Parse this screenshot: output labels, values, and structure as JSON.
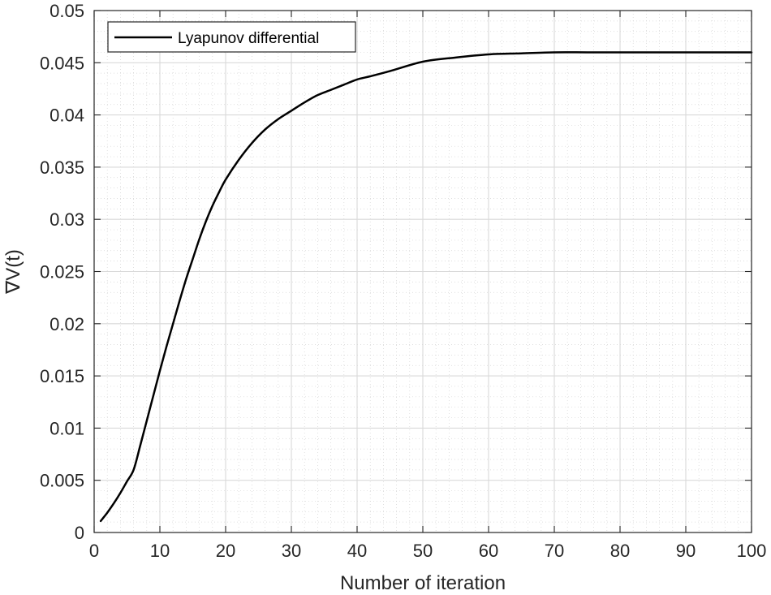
{
  "chart_data": {
    "type": "line",
    "title": "",
    "xlabel": "Number of iteration",
    "ylabel": "∇V(t)",
    "xlim": [
      0,
      100
    ],
    "ylim": [
      0,
      0.05
    ],
    "x_ticks": [
      "0",
      "10",
      "20",
      "30",
      "40",
      "50",
      "60",
      "70",
      "80",
      "90",
      "100"
    ],
    "y_ticks": [
      "0",
      "0.005",
      "0.01",
      "0.015",
      "0.02",
      "0.025",
      "0.03",
      "0.035",
      "0.04",
      "0.045",
      "0.05"
    ],
    "grid": true,
    "minor_grid": true,
    "legend_position": "top-left",
    "series": [
      {
        "name": "Lyapunov differential",
        "color": "#000000",
        "x": [
          1,
          2,
          3,
          4,
          5,
          6,
          7,
          8,
          9,
          10,
          11,
          12,
          13,
          14,
          15,
          16,
          17,
          18,
          19,
          20,
          22,
          24,
          26,
          28,
          30,
          32,
          34,
          36,
          38,
          40,
          42,
          45,
          50,
          55,
          60,
          65,
          70,
          75,
          80,
          85,
          90,
          95,
          100
        ],
        "values": [
          0.0011,
          0.0019,
          0.0028,
          0.0038,
          0.0049,
          0.006,
          0.0083,
          0.0107,
          0.0131,
          0.0155,
          0.0178,
          0.02,
          0.0222,
          0.0243,
          0.0262,
          0.0281,
          0.0298,
          0.0313,
          0.0326,
          0.0338,
          0.0357,
          0.0373,
          0.0386,
          0.0396,
          0.0404,
          0.0412,
          0.0419,
          0.0424,
          0.0429,
          0.0434,
          0.0437,
          0.0442,
          0.0451,
          0.0455,
          0.0458,
          0.0459,
          0.046,
          0.046,
          0.046,
          0.046,
          0.046,
          0.046,
          0.046
        ]
      }
    ]
  }
}
